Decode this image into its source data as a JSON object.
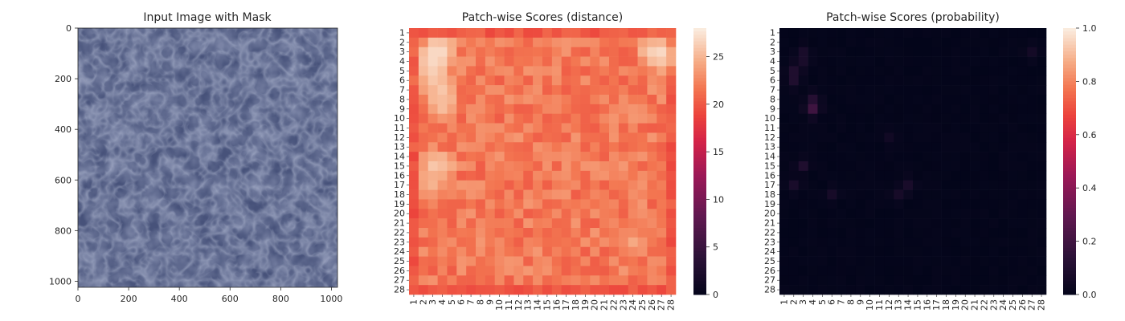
{
  "chart_data": [
    {
      "type": "image",
      "title": "Input Image with Mask",
      "xlim": [
        0,
        1024
      ],
      "ylim": [
        1024,
        0
      ],
      "xticks": [
        "0",
        "200",
        "400",
        "600",
        "800",
        "1000"
      ],
      "yticks": [
        "0",
        "200",
        "400",
        "600",
        "800",
        "1000"
      ],
      "xtick_values": [
        0,
        200,
        400,
        600,
        800,
        1000
      ],
      "ytick_values": [
        0,
        200,
        400,
        600,
        800,
        1000
      ],
      "texture_color": "#47527a"
    },
    {
      "type": "heatmap",
      "title": "Patch-wise Scores (distance)",
      "rows": 28,
      "cols": 28,
      "row_labels": [
        "1",
        "2",
        "3",
        "4",
        "5",
        "6",
        "7",
        "8",
        "9",
        "10",
        "11",
        "12",
        "13",
        "14",
        "15",
        "16",
        "17",
        "18",
        "19",
        "20",
        "21",
        "22",
        "23",
        "24",
        "25",
        "26",
        "27",
        "28"
      ],
      "col_labels": [
        "1",
        "2",
        "3",
        "4",
        "5",
        "6",
        "7",
        "8",
        "9",
        "10",
        "11",
        "12",
        "13",
        "14",
        "15",
        "16",
        "17",
        "18",
        "19",
        "20",
        "21",
        "22",
        "23",
        "24",
        "25",
        "26",
        "27",
        "28"
      ],
      "colorbar": {
        "min": 0,
        "max": 28,
        "ticks": [
          "0",
          "5",
          "10",
          "15",
          "20",
          "25"
        ],
        "tick_values": [
          0,
          5,
          10,
          15,
          20,
          25
        ]
      },
      "colormap": "rocket",
      "pattern": {
        "base": 22,
        "border": 20,
        "hot": [
          [
            3,
            3,
            27
          ],
          [
            3,
            4,
            27
          ],
          [
            4,
            3,
            27
          ],
          [
            5,
            3,
            26.5
          ],
          [
            6,
            3,
            26
          ],
          [
            7,
            4,
            26
          ],
          [
            8,
            4,
            25.5
          ],
          [
            9,
            4,
            25.5
          ],
          [
            3,
            26,
            26
          ],
          [
            3,
            27,
            27
          ],
          [
            4,
            27,
            26
          ],
          [
            15,
            3,
            26
          ],
          [
            15,
            4,
            25.5
          ],
          [
            17,
            3,
            25
          ],
          [
            23,
            24,
            24.5
          ]
        ],
        "hot_radius": 2.2
      }
    },
    {
      "type": "heatmap",
      "title": "Patch-wise Scores (probability)",
      "rows": 28,
      "cols": 28,
      "row_labels": [
        "1",
        "2",
        "3",
        "4",
        "5",
        "6",
        "7",
        "8",
        "9",
        "10",
        "11",
        "12",
        "13",
        "14",
        "15",
        "16",
        "17",
        "18",
        "19",
        "20",
        "21",
        "22",
        "23",
        "24",
        "25",
        "26",
        "27",
        "28"
      ],
      "col_labels": [
        "1",
        "2",
        "3",
        "4",
        "5",
        "6",
        "7",
        "8",
        "9",
        "10",
        "11",
        "12",
        "13",
        "14",
        "15",
        "16",
        "17",
        "18",
        "19",
        "20",
        "21",
        "22",
        "23",
        "24",
        "25",
        "26",
        "27",
        "28"
      ],
      "colorbar": {
        "min": 0,
        "max": 1,
        "ticks": [
          "0.0",
          "0.2",
          "0.4",
          "0.6",
          "0.8",
          "1.0"
        ],
        "tick_values": [
          0.0,
          0.2,
          0.4,
          0.6,
          0.8,
          1.0
        ]
      },
      "colormap": "rocket",
      "pattern": {
        "base": 0.0,
        "hot": [
          [
            9,
            4,
            0.2
          ],
          [
            8,
            4,
            0.12
          ],
          [
            3,
            3,
            0.08
          ],
          [
            4,
            3,
            0.08
          ],
          [
            5,
            2,
            0.1
          ],
          [
            6,
            2,
            0.1
          ],
          [
            15,
            3,
            0.1
          ],
          [
            17,
            2,
            0.08
          ],
          [
            17,
            14,
            0.08
          ],
          [
            18,
            13,
            0.07
          ],
          [
            18,
            6,
            0.07
          ],
          [
            3,
            27,
            0.06
          ],
          [
            12,
            12,
            0.05
          ]
        ],
        "hot_radius": 1.2
      }
    }
  ]
}
